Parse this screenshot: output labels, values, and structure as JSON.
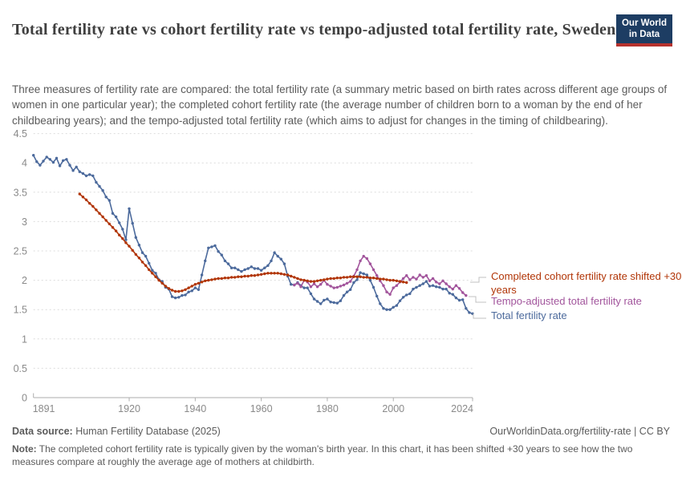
{
  "header": {
    "title": "Total fertility rate vs cohort fertility rate vs tempo-adjusted total fertility rate, Sweden",
    "logo": {
      "line1": "Our World",
      "line2": "in Data",
      "bg_color": "#1d3d63",
      "bar_color": "#b6322d"
    }
  },
  "subtitle": "Three measures of fertility rate are compared: the total fertility rate (a summary metric based on birth rates across different age groups of women in one particular year); the completed cohort fertility rate (the average number of children born to a woman by the end of her childbearing years); and the tempo-adjusted total fertility rate (which aims to adjust for changes in the timing of childbearing).",
  "footer": {
    "source_label": "Data source:",
    "source_text": " Human Fertility Database (2025)",
    "link_text": "OurWorldinData.org/fertility-rate | CC BY",
    "note_label": "Note:",
    "note_text": " The completed cohort fertility rate is typically given by the woman's birth year. In this chart, it has been shifted +30 years to see how the two measures compare at roughly the average age of mothers at childbirth."
  },
  "chart_data": {
    "type": "line",
    "title": "Total fertility rate vs cohort fertility rate vs tempo-adjusted total fertility rate, Sweden",
    "xlabel": "",
    "ylabel": "",
    "xlim": [
      1891,
      2024
    ],
    "ylim": [
      0,
      4.5
    ],
    "x_ticks": [
      1891,
      1920,
      1940,
      1960,
      1980,
      2000,
      2024
    ],
    "y_ticks": [
      0,
      0.5,
      1,
      1.5,
      2,
      2.5,
      3,
      3.5,
      4,
      4.5
    ],
    "grid": "horizontal-dashed",
    "legend_position": "right",
    "series": [
      {
        "name": "Total fertility rate",
        "color": "#4C6A9C",
        "start_year": 1891,
        "end_year": 2024,
        "values": [
          4.13,
          4.02,
          3.96,
          4.03,
          4.1,
          4.06,
          4.01,
          4.08,
          3.95,
          4.04,
          4.06,
          3.96,
          3.87,
          3.93,
          3.85,
          3.82,
          3.78,
          3.8,
          3.78,
          3.67,
          3.6,
          3.53,
          3.42,
          3.36,
          3.14,
          3.08,
          2.98,
          2.87,
          2.69,
          3.22,
          2.97,
          2.73,
          2.6,
          2.47,
          2.41,
          2.29,
          2.17,
          2.12,
          2.01,
          1.98,
          1.88,
          1.85,
          1.72,
          1.7,
          1.71,
          1.74,
          1.75,
          1.8,
          1.82,
          1.87,
          1.84,
          2.09,
          2.33,
          2.55,
          2.57,
          2.59,
          2.49,
          2.43,
          2.33,
          2.28,
          2.21,
          2.21,
          2.18,
          2.15,
          2.18,
          2.2,
          2.23,
          2.2,
          2.2,
          2.17,
          2.21,
          2.25,
          2.33,
          2.47,
          2.41,
          2.36,
          2.28,
          2.07,
          1.93,
          1.92,
          1.96,
          1.91,
          1.87,
          1.87,
          1.77,
          1.68,
          1.64,
          1.6,
          1.66,
          1.68,
          1.63,
          1.62,
          1.61,
          1.65,
          1.74,
          1.8,
          1.84,
          1.96,
          2.01,
          2.13,
          2.11,
          2.09,
          2.0,
          1.88,
          1.73,
          1.6,
          1.52,
          1.5,
          1.5,
          1.54,
          1.57,
          1.65,
          1.71,
          1.75,
          1.77,
          1.85,
          1.88,
          1.91,
          1.94,
          1.98,
          1.9,
          1.91,
          1.89,
          1.88,
          1.85,
          1.85,
          1.78,
          1.76,
          1.7,
          1.66,
          1.67,
          1.52,
          1.45,
          1.43
        ]
      },
      {
        "name": "Completed cohort fertility rate shifted +30 years",
        "color": "#B13507",
        "start_year": 1905,
        "end_year": 2004,
        "values": [
          3.47,
          3.42,
          3.37,
          3.31,
          3.26,
          3.2,
          3.14,
          3.08,
          3.02,
          2.96,
          2.9,
          2.84,
          2.77,
          2.71,
          2.64,
          2.58,
          2.51,
          2.44,
          2.38,
          2.31,
          2.25,
          2.18,
          2.12,
          2.06,
          2.0,
          1.95,
          1.9,
          1.86,
          1.83,
          1.81,
          1.81,
          1.82,
          1.84,
          1.87,
          1.9,
          1.93,
          1.95,
          1.97,
          1.99,
          2.0,
          2.01,
          2.02,
          2.03,
          2.03,
          2.04,
          2.04,
          2.05,
          2.05,
          2.06,
          2.06,
          2.07,
          2.07,
          2.08,
          2.08,
          2.09,
          2.1,
          2.11,
          2.12,
          2.12,
          2.12,
          2.12,
          2.11,
          2.1,
          2.09,
          2.07,
          2.05,
          2.03,
          2.01,
          2.0,
          1.99,
          1.98,
          1.98,
          1.99,
          2.0,
          2.01,
          2.02,
          2.03,
          2.03,
          2.04,
          2.04,
          2.05,
          2.05,
          2.06,
          2.06,
          2.06,
          2.06,
          2.05,
          2.05,
          2.04,
          2.04,
          2.03,
          2.02,
          2.02,
          2.01,
          2.0,
          2.0,
          1.99,
          1.98,
          1.97,
          1.96
        ]
      },
      {
        "name": "Tempo-adjusted total fertility rate",
        "color": "#A2559C",
        "start_year": 1970,
        "end_year": 2022,
        "values": [
          1.92,
          1.95,
          1.89,
          2.0,
          1.97,
          1.89,
          1.94,
          1.89,
          1.93,
          2.0,
          1.93,
          1.9,
          1.87,
          1.88,
          1.9,
          1.92,
          1.95,
          1.98,
          2.07,
          2.18,
          2.33,
          2.41,
          2.37,
          2.28,
          2.18,
          2.08,
          1.99,
          1.91,
          1.8,
          1.76,
          1.87,
          1.91,
          1.97,
          2.03,
          2.08,
          2.01,
          2.05,
          2.02,
          2.09,
          2.05,
          2.08,
          1.99,
          2.03,
          1.97,
          1.94,
          1.99,
          1.94,
          1.89,
          1.85,
          1.91,
          1.86,
          1.79,
          1.74
        ]
      }
    ]
  }
}
